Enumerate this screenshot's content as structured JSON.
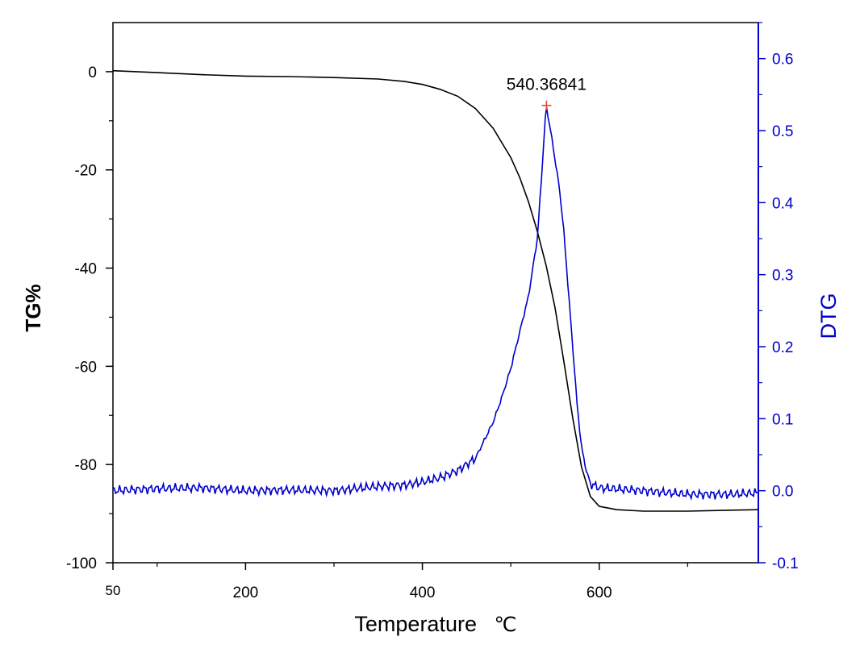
{
  "chart_data": {
    "type": "line",
    "xlabel": "Temperature",
    "xlabel_unit": "℃",
    "ylabel_left": "TG%",
    "ylabel_right": "DTG",
    "xlim": [
      50,
      780
    ],
    "ylim_left": [
      -100,
      10
    ],
    "ylim_right": [
      -0.1,
      0.65
    ],
    "x_ticks": [
      50,
      200,
      400,
      600
    ],
    "y_left_ticks": [
      0,
      -20,
      -40,
      -60,
      -80,
      -100
    ],
    "y_right_ticks": [
      0.6,
      0.5,
      0.4,
      0.3,
      0.2,
      0.1,
      0.0,
      -0.1
    ],
    "colors": {
      "tg": "#000000",
      "dtg": "#0000cc",
      "peak_marker": "#e8402a"
    },
    "series": [
      {
        "key": "tg",
        "axis": "left",
        "x": [
          50,
          100,
          150,
          200,
          250,
          300,
          350,
          380,
          400,
          420,
          440,
          460,
          480,
          500,
          510,
          520,
          530,
          540,
          550,
          560,
          570,
          580,
          590,
          600,
          620,
          650,
          700,
          750,
          780
        ],
        "values": [
          0.2,
          -0.2,
          -0.6,
          -0.9,
          -1.0,
          -1.2,
          -1.5,
          -2.0,
          -2.6,
          -3.6,
          -5.0,
          -7.5,
          -11.5,
          -17.5,
          -21.5,
          -26.5,
          -32.5,
          -39.5,
          -48,
          -59,
          -70.5,
          -80.5,
          -86.5,
          -88.5,
          -89.2,
          -89.5,
          -89.5,
          -89.3,
          -89.2
        ]
      },
      {
        "key": "dtg",
        "axis": "right",
        "x": [
          50,
          100,
          150,
          200,
          250,
          300,
          350,
          380,
          400,
          420,
          440,
          460,
          470,
          480,
          490,
          500,
          510,
          520,
          530,
          535,
          540,
          545,
          550,
          555,
          560,
          565,
          570,
          575,
          580,
          585,
          590,
          600,
          650,
          700,
          750,
          780
        ],
        "values": [
          0.0,
          0.003,
          0.004,
          0.0,
          0.001,
          0.0,
          0.006,
          0.008,
          0.012,
          0.018,
          0.028,
          0.045,
          0.07,
          0.095,
          0.13,
          0.17,
          0.22,
          0.27,
          0.35,
          0.44,
          0.535,
          0.5,
          0.46,
          0.42,
          0.36,
          0.28,
          0.2,
          0.12,
          0.06,
          0.03,
          0.01,
          0.004,
          0.0,
          -0.005,
          -0.005,
          -0.003
        ]
      }
    ],
    "annotation": {
      "text": "540.36841",
      "x": 540.36841,
      "y_right": 0.535
    }
  }
}
